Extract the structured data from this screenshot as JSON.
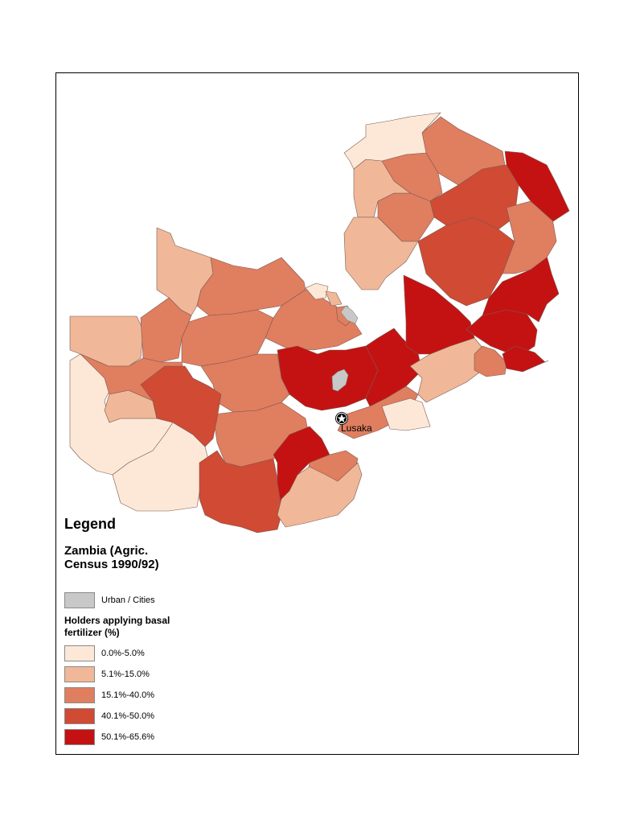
{
  "legend": {
    "title": "Legend",
    "layer_title": "Zambia (Agric. Census 1990/92)",
    "urban": {
      "label": "Urban / Cities",
      "color": "#c8c8c8"
    },
    "classification_title": "Holders applying basal fertilizer (%)",
    "classes": [
      {
        "label": "0.0%-5.0%",
        "color": "#fde8d8"
      },
      {
        "label": "5.1%-15.0%",
        "color": "#f0b898"
      },
      {
        "label": "15.1%-40.0%",
        "color": "#e07e60"
      },
      {
        "label": "40.1%-50.0%",
        "color": "#d04a34"
      },
      {
        "label": "50.1%-65.6%",
        "color": "#c41212"
      }
    ]
  },
  "capital": {
    "name": "Lusaka",
    "icon": "star-in-circle-icon"
  },
  "colors": {
    "border": "#7a5a50",
    "frame": "#000000"
  }
}
